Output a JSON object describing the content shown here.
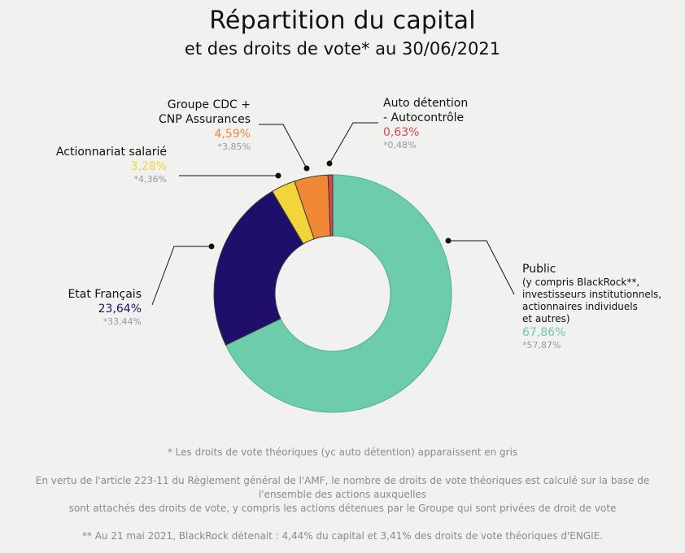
{
  "title": "Répartition du capital",
  "subtitle": "et des droits de vote* au 30/06/2021",
  "chart_data": {
    "type": "pie",
    "donut": true,
    "slices": [
      {
        "name": "Public",
        "value": 67.86,
        "value_label": "67,86%",
        "vote_label": "*57,87%",
        "color": "#6dcca9",
        "desc": [
          "(y compris BlackRock**,",
          "investisseurs institutionnels,",
          "actionnaires individuels",
          "et autres)"
        ]
      },
      {
        "name": "Etat Français",
        "value": 23.64,
        "value_label": "23,64%",
        "vote_label": "*33,44%",
        "color": "#1f0f6b",
        "label_color": "#1f0f6b"
      },
      {
        "name": "Actionnariat salarié",
        "value": 3.28,
        "value_label": "3,28%",
        "vote_label": "*4,36%",
        "color": "#f2d43b",
        "label_color": "#f2d43b"
      },
      {
        "name_line1": "Groupe CDC +",
        "name_line2": "CNP Assurances",
        "value": 4.59,
        "value_label": "4,59%",
        "vote_label": "*3,85%",
        "color": "#f08835",
        "label_color": "#f08835"
      },
      {
        "name_line1": "Auto détention",
        "name_line2": "- Autocontrôle",
        "value": 0.63,
        "value_label": "0,63%",
        "vote_label": "*0,48%",
        "color": "#d9474e",
        "label_color": "#d9474e"
      }
    ],
    "public_label_color": "#6dcca9"
  },
  "footnotes": {
    "f1": "* Les droits de vote théoriques (yc auto détention) apparaissent en gris",
    "f2a": "En vertu de l'article 223-11 du Règlement général de l'AMF, le nombre de droits de vote théoriques est calculé sur la base de",
    "f2b": "l'ensemble des actions auxquelles",
    "f2c": "sont attachés des droits de vote, y compris les actions détenues par le Groupe qui sont privées de droit de vote",
    "f3": "** Au 21 mai 2021, BlackRock détenait : 4,44% du capital et 3,41% des droits de vote théoriques d'ENGIE."
  }
}
